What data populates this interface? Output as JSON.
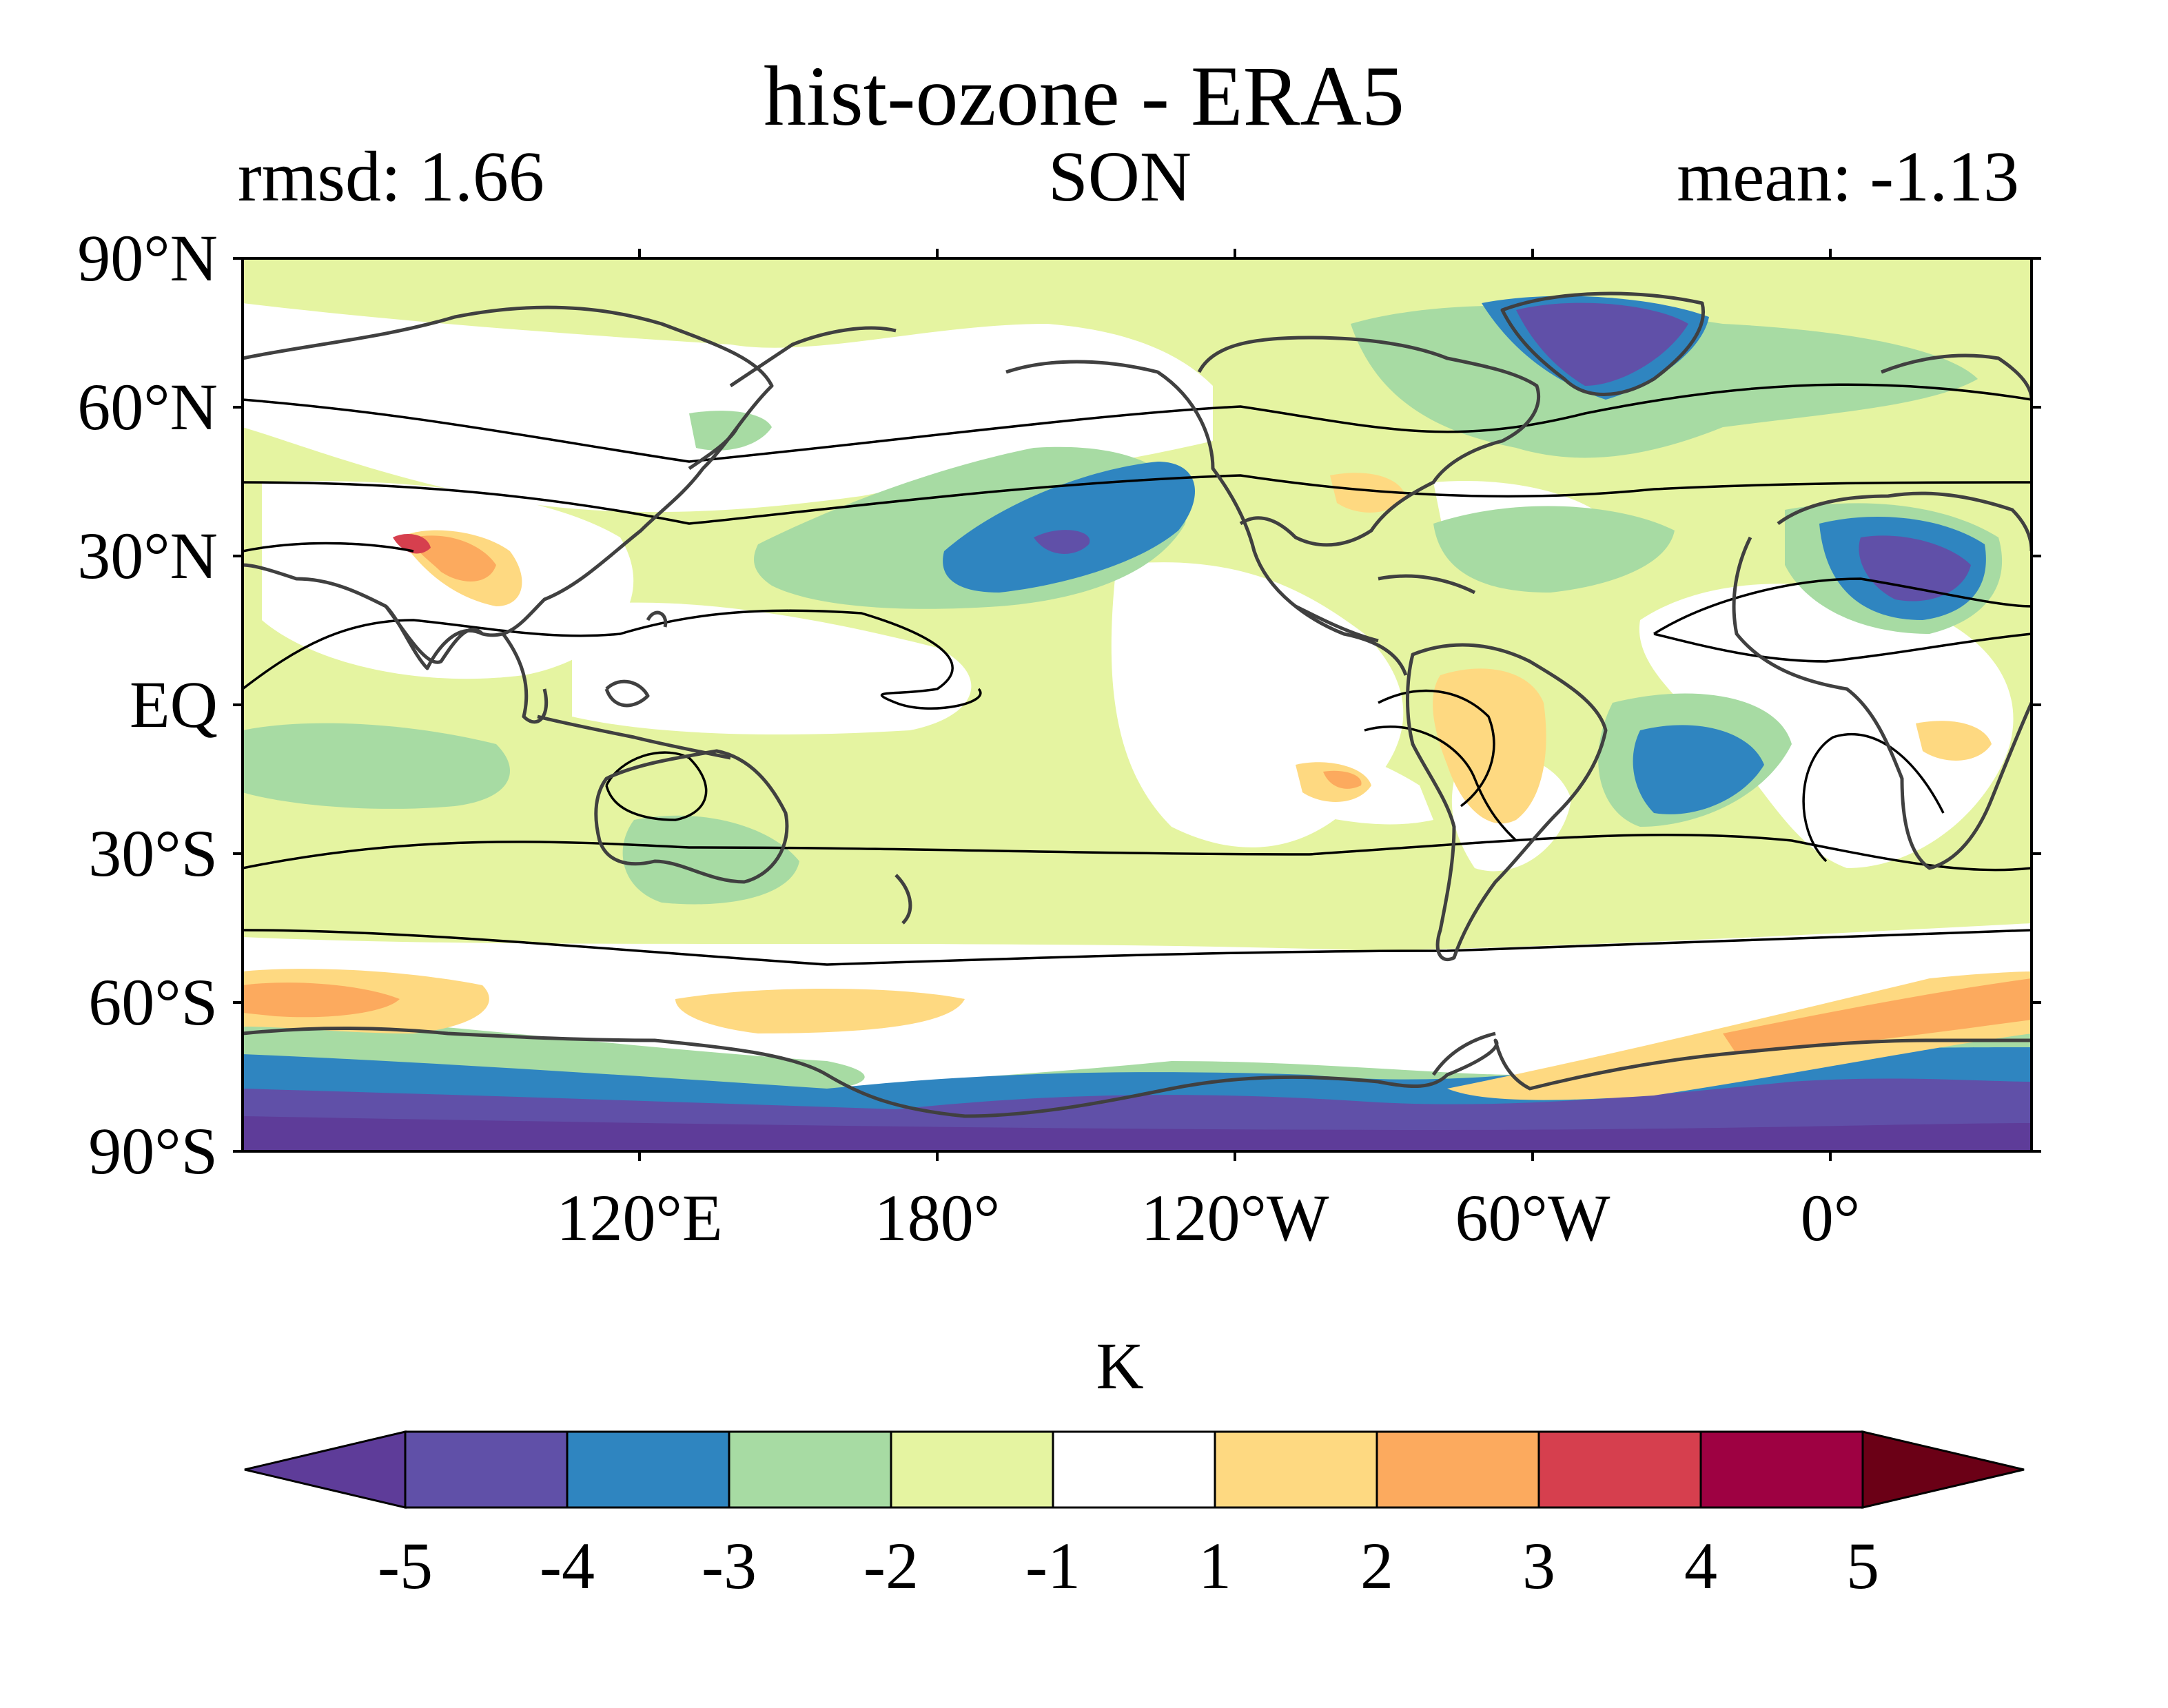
{
  "title": "hist-ozone - ERA5",
  "left_subtitle": "rmsd: 1.66",
  "center_subtitle": "SON",
  "right_subtitle": "mean: -1.13",
  "lat_labels": [
    "90°N",
    "60°N",
    "30°N",
    "EQ",
    "30°S",
    "60°S",
    "90°S"
  ],
  "lon_labels": [
    "120°E",
    "180°",
    "120°W",
    "60°W",
    "0°"
  ],
  "colorbar": {
    "unit": "K",
    "ticks": [
      "-5",
      "-4",
      "-3",
      "-2",
      "-1",
      "1",
      "2",
      "3",
      "4",
      "5"
    ],
    "extend": "both",
    "colors": {
      "below": "#5e3c99",
      "bins": [
        "#6050a8",
        "#2f85c0",
        "#a7dba3",
        "#e5f4a1",
        "#ffffff",
        "#fed981",
        "#fcaa5e",
        "#d63f4e",
        "#9e0142"
      ],
      "above": "#6b0016"
    }
  },
  "map": {
    "projection": "cylindrical equidistant, central longitude ~150°E",
    "field": "temperature difference hist-ozone minus ERA5",
    "land_outline_color": "#404040",
    "contour_line_color": "#000000"
  }
}
